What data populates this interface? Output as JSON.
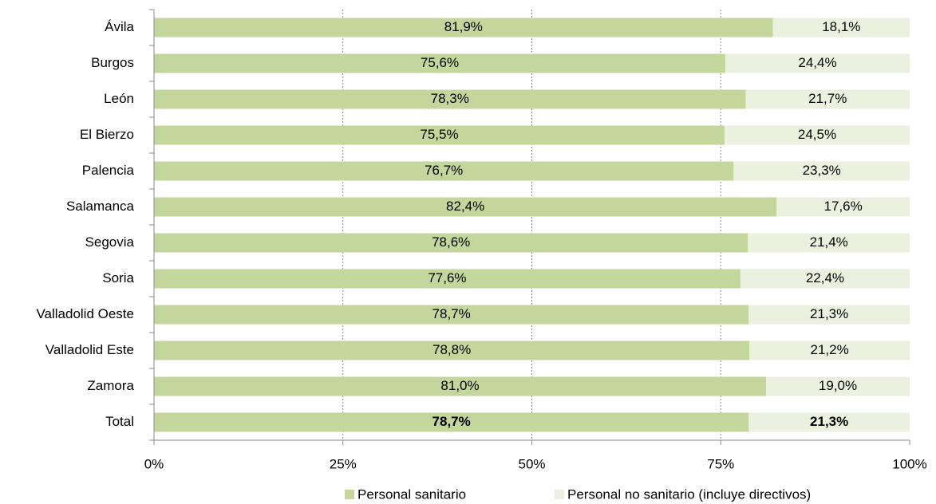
{
  "chart_data": {
    "type": "stacked_barh",
    "categories": [
      "Ávila",
      "Burgos",
      "León",
      "El Bierzo",
      "Palencia",
      "Salamanca",
      "Segovia",
      "Soria",
      "Valladolid Oeste",
      "Valladolid Este",
      "Zamora",
      "Total"
    ],
    "series": [
      {
        "name": "Personal sanitario",
        "color": "#c3d69b",
        "values": [
          81.9,
          75.6,
          78.3,
          75.5,
          76.7,
          82.4,
          78.6,
          77.6,
          78.7,
          78.8,
          81.0,
          78.7
        ],
        "value_labels": [
          "81,9%",
          "75,6%",
          "78,3%",
          "75,5%",
          "76,7%",
          "82,4%",
          "78,6%",
          "77,6%",
          "78,7%",
          "78,8%",
          "81,0%",
          "78,7%"
        ]
      },
      {
        "name": "Personal no sanitario (incluye directivos)",
        "color": "#ebf1de",
        "values": [
          18.1,
          24.4,
          21.7,
          24.5,
          23.3,
          17.6,
          21.4,
          22.4,
          21.3,
          21.2,
          19.0,
          21.3
        ],
        "value_labels": [
          "18,1%",
          "24,4%",
          "21,7%",
          "24,5%",
          "23,3%",
          "17,6%",
          "21,4%",
          "22,4%",
          "21,3%",
          "21,2%",
          "19,0%",
          "21,3%"
        ]
      }
    ],
    "xlim": [
      0,
      100
    ],
    "xticks": [
      {
        "value": 0,
        "label": "0%"
      },
      {
        "value": 25,
        "label": "25%"
      },
      {
        "value": 50,
        "label": "50%"
      },
      {
        "value": 75,
        "label": "75%"
      },
      {
        "value": 100,
        "label": "100%"
      }
    ],
    "grid": true,
    "legend": "bottom"
  }
}
